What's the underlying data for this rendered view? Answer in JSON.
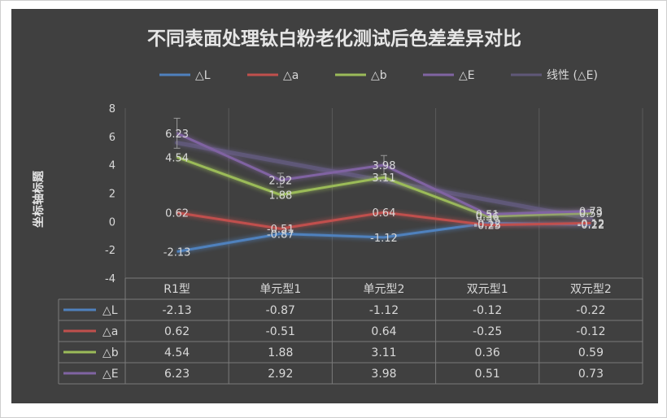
{
  "chart_data": {
    "type": "line",
    "title": "不同表面处理钛白粉老化测试后色差差异对比",
    "ylabel": "坐标轴标题",
    "xlabel": "",
    "ylim": [
      -4,
      8
    ],
    "yticks": [
      8,
      6,
      4,
      2,
      0,
      -2,
      -4
    ],
    "categories": [
      "R1型",
      "单元型1",
      "单元型2",
      "双元型1",
      "双元型2"
    ],
    "legend_position": "top",
    "series": [
      {
        "name": "△L",
        "color": "#4f81bd",
        "values": [
          -2.13,
          -0.87,
          -1.12,
          -0.12,
          -0.22
        ],
        "labels": [
          "-2.13",
          "-0.87",
          "-1.12",
          "-0.12",
          "-0.22"
        ]
      },
      {
        "name": "△a",
        "color": "#c0504d",
        "values": [
          0.62,
          -0.51,
          0.64,
          -0.25,
          -0.12
        ],
        "labels": [
          "0.62",
          "-0.51",
          "0.64",
          "-0.25",
          "-0.12"
        ]
      },
      {
        "name": "△b",
        "color": "#9bbb59",
        "values": [
          4.54,
          1.88,
          3.11,
          0.36,
          0.59
        ],
        "labels": [
          "4.54",
          "1.88",
          "3.11",
          "0.36",
          "0.59"
        ]
      },
      {
        "name": "△E",
        "color": "#8064a2",
        "values": [
          6.23,
          2.92,
          3.98,
          0.51,
          0.73
        ],
        "labels": [
          "6.23",
          "2.92",
          "3.98",
          "0.51",
          "0.73"
        ]
      }
    ],
    "trendline": {
      "name": "线性 (△E)",
      "color": "#5f5878",
      "of_series": "△E"
    },
    "error_bars_on": "△E",
    "data_table": true
  }
}
